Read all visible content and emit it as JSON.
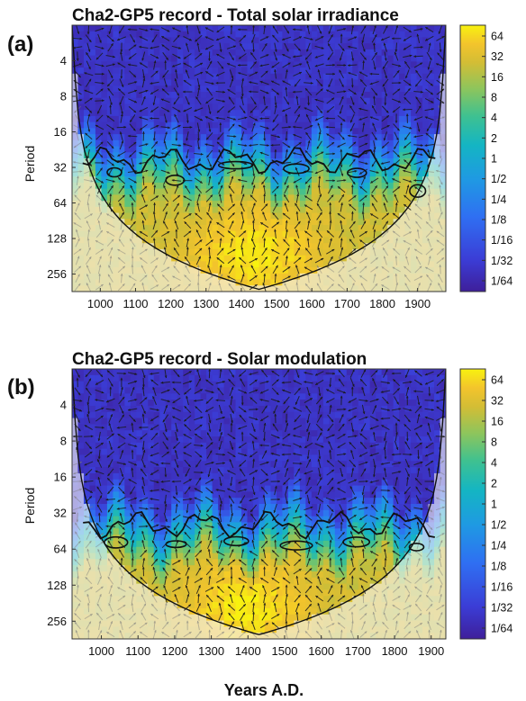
{
  "figure": {
    "xlabel": "Years A.D.",
    "colorbar_ticks": [
      "64",
      "32",
      "16",
      "8",
      "4",
      "2",
      "1",
      "1/2",
      "1/4",
      "1/8",
      "1/16",
      "1/32",
      "1/64"
    ],
    "colors": {
      "low": "#3b22b8",
      "mid": "#1aa0c8",
      "high": "#fbe527",
      "cone_overlay": "#f5e9c8",
      "contour": "#111111"
    }
  },
  "chart_data": [
    {
      "type": "heatmap",
      "panel_label": "(a)",
      "title": "Cha2-GP5 record - Total solar irradiance",
      "ylabel": "Period",
      "x_ticks": [
        1000,
        1100,
        1200,
        1300,
        1400,
        1500,
        1600,
        1700,
        1800,
        1900
      ],
      "y_ticks": [
        4,
        8,
        16,
        32,
        64,
        128,
        256
      ],
      "y_scale": "log2",
      "y_reversed": true,
      "xlim": [
        920,
        1980
      ],
      "ylim": [
        2,
        360
      ],
      "colorbar_range": [
        0.015625,
        64
      ],
      "legend": "colorbar right",
      "power_transition_period": [
        16,
        28,
        40,
        64
      ],
      "strong_band_period": [
        90,
        330
      ],
      "strong_band_years": [
        1250,
        1620
      ]
    },
    {
      "type": "heatmap",
      "panel_label": "(b)",
      "title": "Cha2-GP5 record - Solar modulation",
      "ylabel": "Period",
      "x_ticks": [
        1000,
        1100,
        1200,
        1300,
        1400,
        1500,
        1600,
        1700,
        1800,
        1900
      ],
      "y_ticks": [
        4,
        8,
        16,
        32,
        64,
        128,
        256
      ],
      "y_scale": "log2",
      "y_reversed": true,
      "xlim": [
        920,
        1940
      ],
      "ylim": [
        2,
        360
      ],
      "colorbar_range": [
        0.015625,
        64
      ],
      "legend": "colorbar right",
      "power_transition_period": [
        24,
        40,
        60,
        90
      ],
      "strong_band_period": [
        110,
        330
      ],
      "strong_band_years": [
        1230,
        1560
      ]
    }
  ]
}
